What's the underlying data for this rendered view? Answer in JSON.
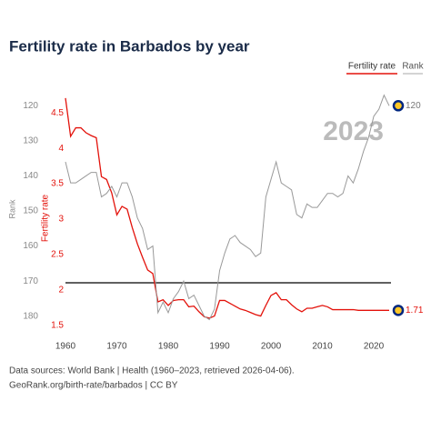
{
  "chart_data": {
    "type": "line",
    "title": "Fertility rate in Barbados by year",
    "ylabel": "Fertility rate",
    "y2label": "Rank",
    "x": [
      1960,
      1961,
      1962,
      1963,
      1964,
      1965,
      1966,
      1967,
      1968,
      1969,
      1970,
      1971,
      1972,
      1973,
      1974,
      1975,
      1976,
      1977,
      1978,
      1979,
      1980,
      1981,
      1982,
      1983,
      1984,
      1985,
      1986,
      1987,
      1988,
      1989,
      1990,
      1991,
      1992,
      1993,
      1994,
      1995,
      1996,
      1997,
      1998,
      1999,
      2000,
      2001,
      2002,
      2003,
      2004,
      2005,
      2006,
      2007,
      2008,
      2009,
      2010,
      2011,
      2012,
      2013,
      2014,
      2015,
      2016,
      2017,
      2018,
      2019,
      2020,
      2021,
      2022,
      2023
    ],
    "series": [
      {
        "name": "Fertility rate",
        "color": "#e3120b",
        "axis": "y",
        "values": [
          4.71,
          4.17,
          4.29,
          4.29,
          4.22,
          4.18,
          4.15,
          3.6,
          3.56,
          3.37,
          3.06,
          3.18,
          3.14,
          2.88,
          2.65,
          2.46,
          2.28,
          2.23,
          1.83,
          1.86,
          1.78,
          1.85,
          1.86,
          1.86,
          1.76,
          1.77,
          1.69,
          1.62,
          1.6,
          1.63,
          1.85,
          1.85,
          1.81,
          1.77,
          1.73,
          1.71,
          1.68,
          1.65,
          1.63,
          1.78,
          1.92,
          1.96,
          1.86,
          1.86,
          1.79,
          1.73,
          1.69,
          1.74,
          1.74,
          1.76,
          1.78,
          1.76,
          1.72,
          1.72,
          1.72,
          1.72,
          1.72,
          1.71,
          1.71,
          1.71,
          1.71,
          1.71,
          1.71,
          1.71
        ]
      },
      {
        "name": "Rank",
        "color": "#999999",
        "axis": "y2",
        "values": [
          136,
          142,
          142,
          141,
          140,
          139,
          139,
          146,
          145,
          143,
          146,
          142,
          142,
          146,
          152,
          155,
          161,
          160,
          179,
          176,
          179,
          175,
          173,
          170,
          175,
          174,
          177,
          180,
          181,
          178,
          167,
          162,
          158,
          157,
          159,
          160,
          161,
          163,
          162,
          146,
          141,
          136,
          142,
          143,
          144,
          151,
          152,
          148,
          149,
          149,
          147,
          145,
          145,
          146,
          145,
          140,
          142,
          138,
          133,
          129,
          123,
          121,
          117,
          120
        ]
      }
    ],
    "xlim": [
      1960,
      2023
    ],
    "xticks": [
      1960,
      1970,
      1980,
      1990,
      2000,
      2010,
      2020
    ],
    "ylim": [
      1.38,
      4.85
    ],
    "yticks": [
      1.5,
      2,
      2.5,
      3,
      3.5,
      4,
      4.5
    ],
    "y2lim": [
      115,
      185
    ],
    "y2ticks": [
      120,
      130,
      140,
      150,
      160,
      170,
      180
    ],
    "y2_inverted": true,
    "reference_line": 2.1,
    "footer": [
      "Data sources: World Bank | Health (1960–2023, retrieved 2026-04-06).",
      "GeoRank.org/birth-rate/barbados | CC BY"
    ]
  }
}
